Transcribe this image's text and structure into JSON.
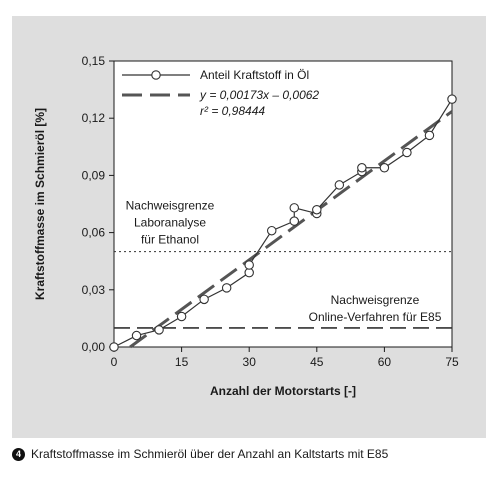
{
  "chart_data": {
    "type": "line",
    "ylabel": "Kraftstoffmasse im Schmieröl [%]",
    "xlabel": "Anzahl der Motorstarts [-]",
    "xlim": [
      0,
      75
    ],
    "ylim": [
      0,
      0.15
    ],
    "x_ticks": [
      "0",
      "15",
      "30",
      "45",
      "60",
      "75"
    ],
    "x_tick_values": [
      0,
      15,
      30,
      45,
      60,
      75
    ],
    "y_ticks": [
      "0,00",
      "0,03",
      "0,06",
      "0,09",
      "0,12",
      "0,15"
    ],
    "y_tick_values": [
      0,
      0.03,
      0.06,
      0.09,
      0.12,
      0.15
    ],
    "grid": false,
    "legend_position": "top-right",
    "series": [
      {
        "name": "Anteil Kraftstoff in Öl",
        "style": "line-with-open-circles",
        "x": [
          0,
          5,
          10,
          15,
          20,
          25,
          30,
          30,
          35,
          40,
          40,
          45,
          45,
          50,
          55,
          55,
          60,
          65,
          70,
          75
        ],
        "y": [
          0.0,
          0.006,
          0.009,
          0.016,
          0.025,
          0.031,
          0.039,
          0.043,
          0.061,
          0.066,
          0.073,
          0.07,
          0.072,
          0.085,
          0.092,
          0.094,
          0.094,
          0.102,
          0.111,
          0.13
        ]
      },
      {
        "name": "y = 0,00173x – 0,0062",
        "style": "long-dash",
        "slope": 0.00173,
        "intercept": -0.0062
      }
    ],
    "legend_r2": "r² = 0,98444",
    "reference_lines": [
      {
        "y": 0.05,
        "style": "dotted",
        "label_lines": [
          "Nachweisgrenze",
          "Laboranalyse",
          "für Ethanol"
        ]
      },
      {
        "y": 0.01,
        "style": "dashed",
        "label_lines": [
          "Nachweisgrenze",
          "Online-Verfahren für E85"
        ]
      }
    ]
  },
  "caption": {
    "number": "4",
    "text": "Kraftstoffmasse im Schmieröl über der Anzahl an Kaltstarts mit E85"
  },
  "colors": {
    "panel": "#dedede",
    "ink": "#1a1a1a",
    "line": "#444444",
    "marker_fill": "#ffffff"
  }
}
